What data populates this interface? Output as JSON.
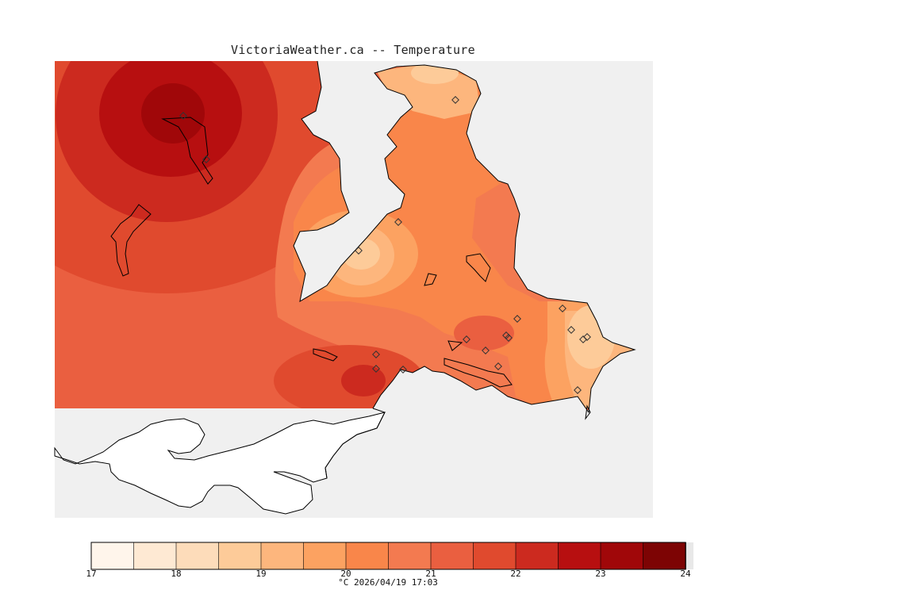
{
  "title": "VictoriaWeather.ca -- Temperature",
  "colorbar": {
    "ticks": [
      "17",
      "18",
      "19",
      "20",
      "21",
      "22",
      "23",
      "24"
    ],
    "colors": [
      "#fff5eb",
      "#fee9d3",
      "#fddcba",
      "#fdcb99",
      "#fdb67d",
      "#fca261",
      "#f9864a",
      "#f37a50",
      "#ea5f40",
      "#e04a2e",
      "#cc2a1f",
      "#b70f10",
      "#a00709",
      "#7d0404"
    ],
    "caption": "°C  2026/04/19 17:03"
  },
  "colors": {
    "water_background": "#f0f0f0",
    "no_data_land": "#ffffff",
    "outline": "#000000"
  },
  "stations": [
    {
      "id": "s1"
    },
    {
      "id": "s2"
    },
    {
      "id": "s3"
    },
    {
      "id": "s4"
    },
    {
      "id": "s5"
    },
    {
      "id": "s6"
    },
    {
      "id": "s7"
    },
    {
      "id": "s8"
    },
    {
      "id": "s9"
    },
    {
      "id": "s10"
    },
    {
      "id": "s11"
    },
    {
      "id": "s12"
    },
    {
      "id": "s13"
    },
    {
      "id": "s14"
    },
    {
      "id": "s15"
    },
    {
      "id": "s16"
    },
    {
      "id": "s17"
    },
    {
      "id": "s18"
    },
    {
      "id": "s19"
    }
  ]
}
